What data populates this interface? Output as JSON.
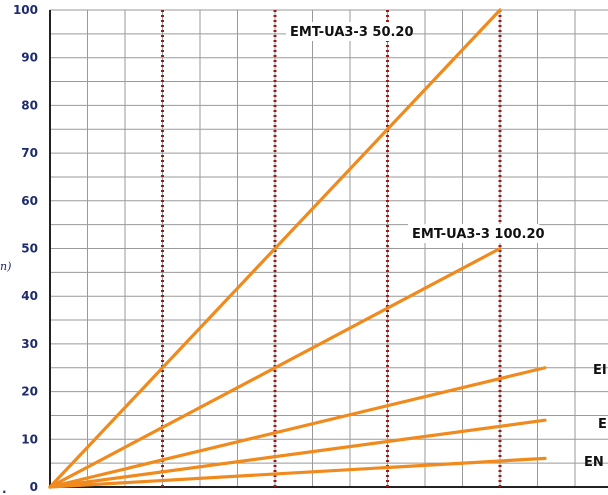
{
  "chart_data": {
    "type": "line",
    "ylabel": "n)",
    "ylim": [
      0,
      100
    ],
    "y_ticks": [
      "0",
      "10",
      "20",
      "30",
      "40",
      "50",
      "60",
      "70",
      "80",
      "90",
      "100"
    ],
    "grid": true,
    "series": [
      {
        "name": "EMT-UA3-3 50.20",
        "x": [
          0,
          100
        ],
        "y": [
          0,
          100
        ],
        "color": "#f08a1c"
      },
      {
        "name": "EMT-UA3-3 100.20",
        "x": [
          0,
          100
        ],
        "y": [
          0,
          50
        ],
        "color": "#f08a1c"
      },
      {
        "name": "EI",
        "x": [
          0,
          110
        ],
        "y": [
          0,
          25
        ],
        "color": "#f08a1c"
      },
      {
        "name": "E",
        "x": [
          0,
          110
        ],
        "y": [
          0,
          14
        ],
        "color": "#f08a1c"
      },
      {
        "name": "EN",
        "x": [
          0,
          110
        ],
        "y": [
          0,
          6
        ],
        "color": "#f08a1c"
      }
    ],
    "reference_lines_color": "#9b1b1b",
    "grid_color": "#9a9a9a"
  }
}
